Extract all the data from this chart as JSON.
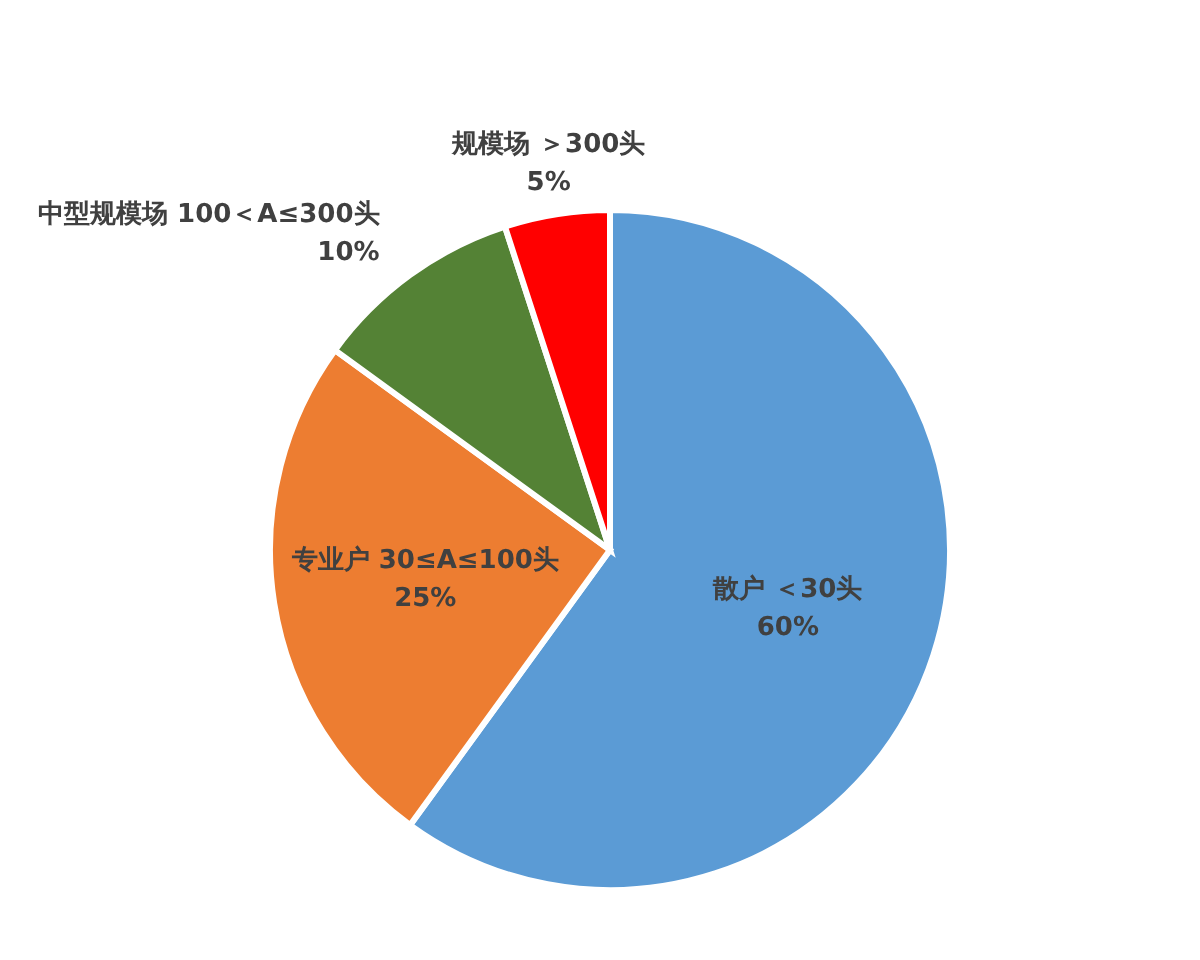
{
  "chart_data": {
    "type": "pie",
    "categories": [
      "散户 ＜30头",
      "专业户 30≤A≤100头",
      "中型规模场 100＜A≤300头",
      "规模场 ＞300头"
    ],
    "values": [
      60,
      25,
      10,
      5
    ],
    "colors": [
      "#5b9bd5",
      "#ed7d31",
      "#548235",
      "#ff0000"
    ],
    "value_labels": [
      "60%",
      "25%",
      "10%",
      "5%"
    ]
  }
}
